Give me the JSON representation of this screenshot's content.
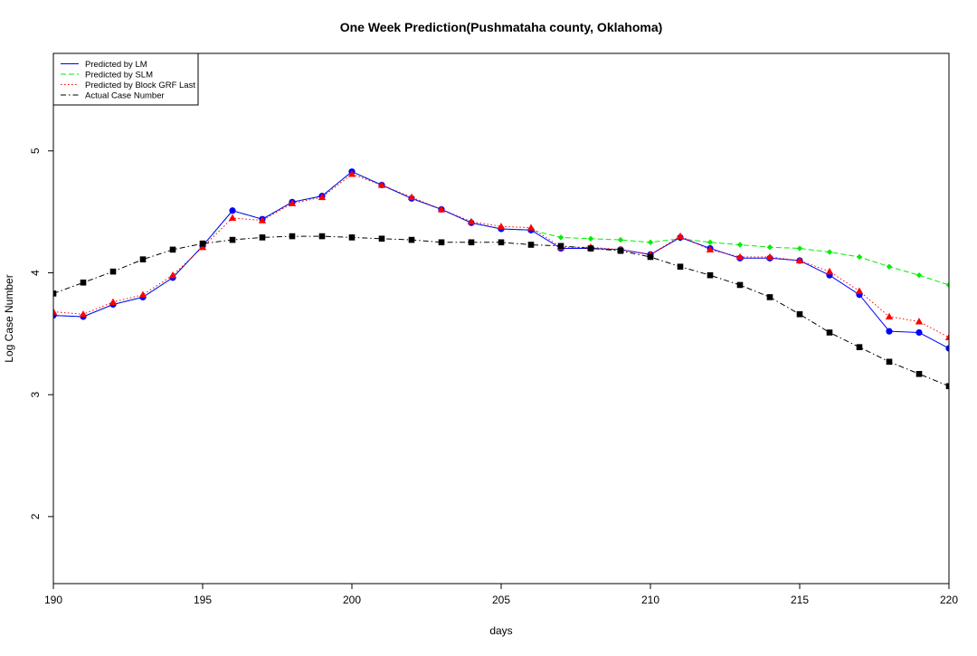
{
  "chart_data": {
    "type": "line",
    "title": "One Week Prediction(Pushmataha county, Oklahoma)",
    "xlabel": "days",
    "ylabel": "Log Case Number",
    "xlim": [
      190,
      220
    ],
    "ylim": [
      1.45,
      5.8
    ],
    "x_ticks": [
      190,
      195,
      200,
      205,
      210,
      215,
      220
    ],
    "y_ticks": [
      2,
      3,
      4,
      5
    ],
    "grid": false,
    "legend_position": "top-left",
    "x": [
      190,
      191,
      192,
      193,
      194,
      195,
      196,
      197,
      198,
      199,
      200,
      201,
      202,
      203,
      204,
      205,
      206,
      207,
      208,
      209,
      210,
      211,
      212,
      213,
      214,
      215,
      216,
      217,
      218,
      219,
      220
    ],
    "series": [
      {
        "name": "Predicted by LM",
        "color": "#0000ff",
        "dash": "solid",
        "marker": "circle",
        "values": [
          3.65,
          3.64,
          3.74,
          3.8,
          3.96,
          4.22,
          4.51,
          4.44,
          4.58,
          4.63,
          4.83,
          4.72,
          4.61,
          4.52,
          4.41,
          4.36,
          4.35,
          4.2,
          4.2,
          4.19,
          4.15,
          4.29,
          4.2,
          4.12,
          4.12,
          4.1,
          3.98,
          3.82,
          3.52,
          3.51,
          3.38
        ]
      },
      {
        "name": "Predicted by SLM",
        "color": "#00ee00",
        "dash": "dashed",
        "marker": "diamond",
        "values": [
          3.65,
          3.64,
          3.74,
          3.8,
          3.96,
          4.22,
          4.51,
          4.44,
          4.58,
          4.63,
          4.83,
          4.72,
          4.61,
          4.52,
          4.41,
          4.36,
          4.35,
          4.29,
          4.28,
          4.27,
          4.25,
          4.28,
          4.25,
          4.23,
          4.21,
          4.2,
          4.17,
          4.13,
          4.05,
          3.98,
          3.9
        ]
      },
      {
        "name": "Predicted by Block GRF Last",
        "color": "#ff0000",
        "dash": "dotted",
        "marker": "triangle",
        "values": [
          3.68,
          3.66,
          3.76,
          3.82,
          3.98,
          4.21,
          4.45,
          4.43,
          4.57,
          4.62,
          4.81,
          4.72,
          4.62,
          4.52,
          4.42,
          4.38,
          4.37,
          4.21,
          4.21,
          4.19,
          4.15,
          4.3,
          4.19,
          4.13,
          4.13,
          4.1,
          4.01,
          3.85,
          3.64,
          3.6,
          3.47
        ]
      },
      {
        "name": "Actual Case Number",
        "color": "#000000",
        "dash": "dashdot",
        "marker": "square",
        "values": [
          3.83,
          3.92,
          4.01,
          4.11,
          4.19,
          4.24,
          4.27,
          4.29,
          4.3,
          4.3,
          4.29,
          4.28,
          4.27,
          4.25,
          4.25,
          4.25,
          4.23,
          4.22,
          4.2,
          4.18,
          4.13,
          4.05,
          3.98,
          3.9,
          3.8,
          3.66,
          3.51,
          3.39,
          3.27,
          3.17,
          3.07
        ]
      }
    ]
  }
}
